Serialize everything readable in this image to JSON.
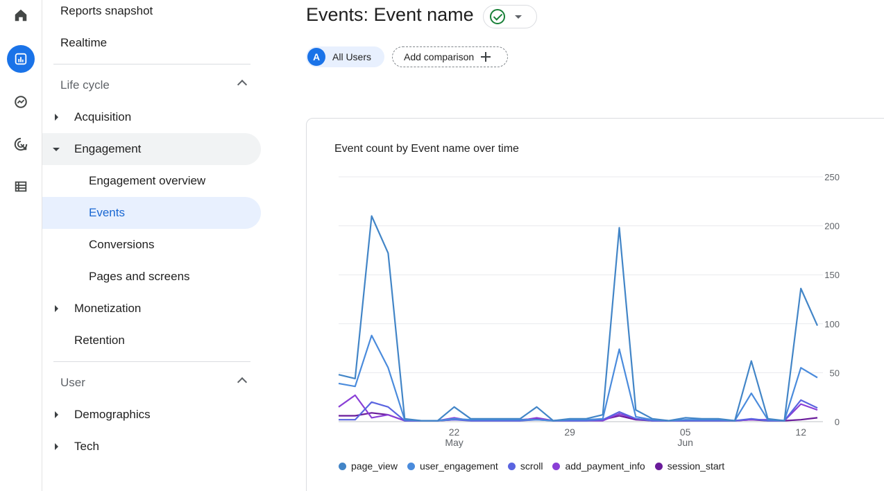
{
  "rail": {
    "items": [
      {
        "icon": "home-icon"
      },
      {
        "icon": "reports-icon",
        "active": true
      },
      {
        "icon": "explore-icon"
      },
      {
        "icon": "advertising-icon"
      },
      {
        "icon": "configure-icon"
      }
    ]
  },
  "nav": {
    "reports_snapshot": "Reports snapshot",
    "realtime": "Realtime",
    "lifecycle": "Life cycle",
    "acquisition": "Acquisition",
    "engagement": "Engagement",
    "engagement_overview": "Engagement overview",
    "events": "Events",
    "conversions": "Conversions",
    "pages_and_screens": "Pages and screens",
    "monetization": "Monetization",
    "retention": "Retention",
    "user": "User",
    "demographics": "Demographics",
    "tech": "Tech"
  },
  "header": {
    "title": "Events: Event name",
    "users_avatar": "A",
    "users_label": "All Users",
    "add_comparison": "Add comparison"
  },
  "colors": {
    "page_view": "#4285c7",
    "user_engagement": "#4a8bdc",
    "scroll": "#5a64e0",
    "add_payment_info": "#8a3fd6",
    "session_start": "#6a1b9a"
  },
  "chart_data": {
    "type": "line",
    "title": "Event count by Event name over time",
    "y_ticks": [
      "0",
      "50",
      "100",
      "150",
      "200",
      "250"
    ],
    "ylim": [
      0,
      250
    ],
    "x_tick_labels": [
      {
        "day": "22",
        "month": "May",
        "index": 7
      },
      {
        "day": "29",
        "month": "",
        "index": 14
      },
      {
        "day": "05",
        "month": "Jun",
        "index": 21
      },
      {
        "day": "12",
        "month": "",
        "index": 28
      }
    ],
    "grid": true,
    "legend_position": "bottom",
    "series": [
      {
        "name": "page_view",
        "values": [
          48,
          44,
          210,
          172,
          3,
          1,
          1,
          15,
          3,
          3,
          3,
          3,
          15,
          1,
          3,
          3,
          7,
          198,
          12,
          3,
          1,
          4,
          3,
          3,
          1,
          62,
          3,
          1,
          136,
          98
        ]
      },
      {
        "name": "user_engagement",
        "values": [
          39,
          36,
          88,
          55,
          2,
          1,
          1,
          3,
          2,
          2,
          2,
          2,
          2,
          1,
          2,
          2,
          3,
          74,
          5,
          2,
          1,
          2,
          2,
          2,
          1,
          29,
          2,
          1,
          55,
          45
        ]
      },
      {
        "name": "scroll",
        "values": [
          2,
          2,
          20,
          15,
          1,
          1,
          1,
          2,
          1,
          1,
          1,
          1,
          2,
          1,
          1,
          1,
          2,
          10,
          3,
          1,
          1,
          1,
          1,
          1,
          1,
          3,
          1,
          1,
          22,
          14
        ]
      },
      {
        "name": "add_payment_info",
        "values": [
          15,
          27,
          4,
          7,
          1,
          1,
          1,
          4,
          1,
          1,
          1,
          1,
          4,
          1,
          1,
          1,
          1,
          8,
          3,
          1,
          1,
          1,
          2,
          2,
          1,
          2,
          2,
          1,
          18,
          12
        ]
      },
      {
        "name": "session_start",
        "values": [
          6,
          6,
          9,
          7,
          1,
          1,
          1,
          2,
          2,
          2,
          2,
          2,
          3,
          1,
          2,
          2,
          2,
          6,
          2,
          1,
          1,
          1,
          1,
          1,
          1,
          2,
          1,
          1,
          2,
          4
        ]
      }
    ]
  }
}
